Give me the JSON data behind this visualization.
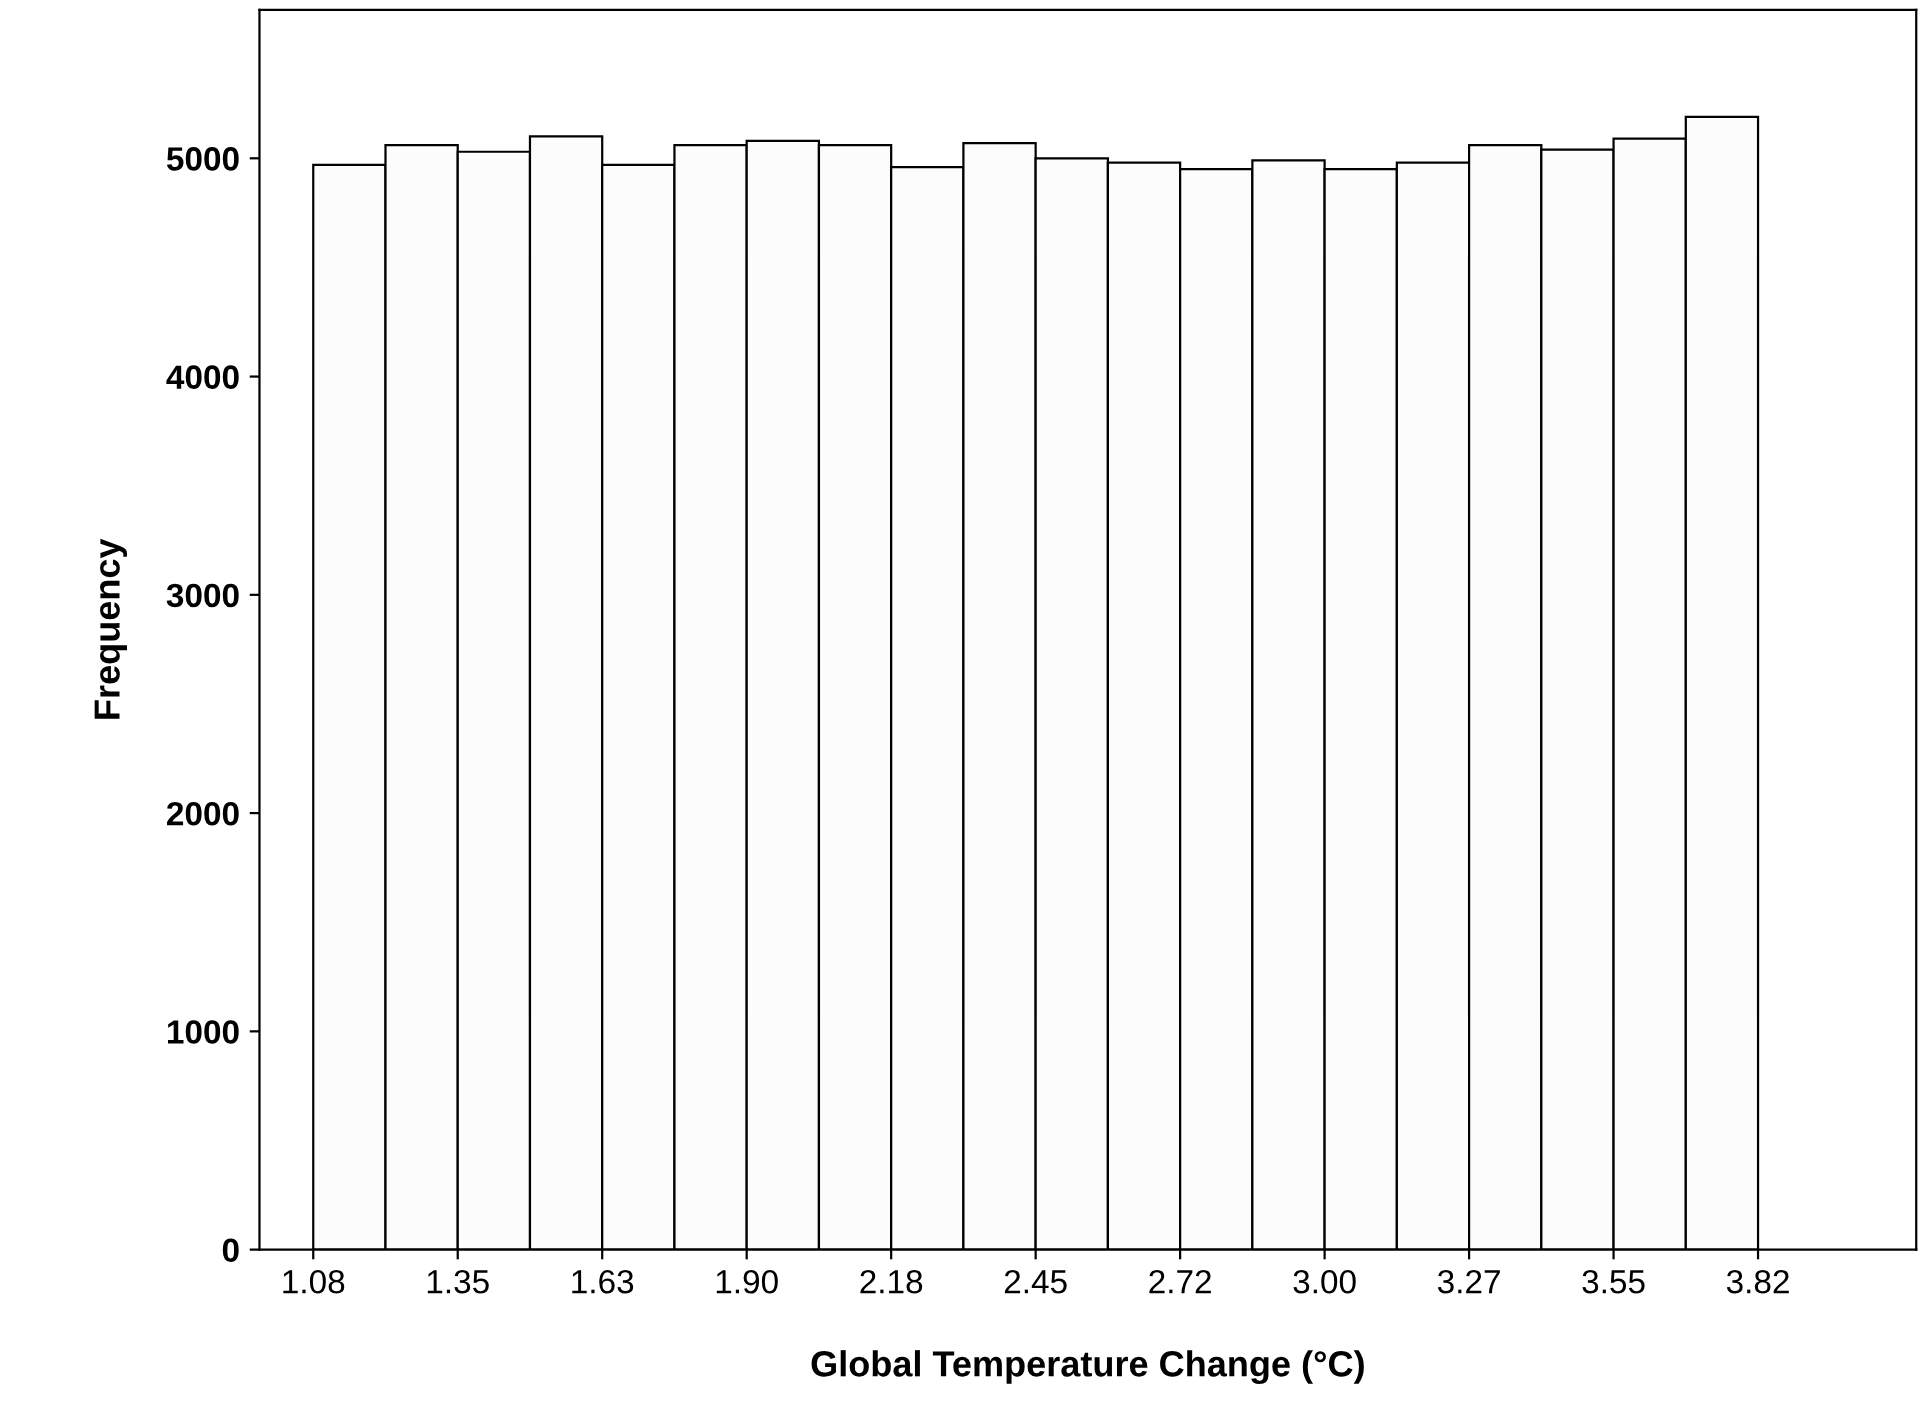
{
  "chart_data": {
    "type": "histogram",
    "xlabel": "Global Temperature Change (°C)",
    "ylabel": "Frequency",
    "bins": [
      1.08,
      1.217,
      1.354,
      1.491,
      1.628,
      1.765,
      1.902,
      2.039,
      2.176,
      2.313,
      2.45,
      2.587,
      2.724,
      2.861,
      2.998,
      3.135,
      3.272,
      3.409,
      3.546,
      3.683,
      3.82
    ],
    "values": [
      4970,
      5060,
      5030,
      5100,
      4970,
      5060,
      5080,
      5060,
      4960,
      5070,
      5000,
      4980,
      4950,
      4990,
      4950,
      4980,
      5060,
      5040,
      5090,
      5190
    ],
    "color": "#fcfcfc",
    "xlim": [
      0.978,
      4.12
    ],
    "ylim": [
      0,
      5680
    ],
    "xticks": [
      1.08,
      {
        "value": 1.354,
        "label": "1.35"
      },
      {
        "value": 1.628,
        "label": "1.63"
      },
      {
        "value": 1.902,
        "label": "1.90"
      },
      {
        "value": 2.176,
        "label": "2.18"
      },
      {
        "value": 2.45,
        "label": "2.45"
      },
      {
        "value": 2.724,
        "label": "2.72"
      },
      {
        "value": 2.998,
        "label": "3.00"
      },
      {
        "value": 3.272,
        "label": "3.27"
      },
      {
        "value": 3.546,
        "label": "3.55"
      },
      {
        "value": 3.82,
        "label": "3.82"
      }
    ],
    "yticks": [
      0,
      1000,
      2000,
      3000,
      4000,
      5000
    ],
    "grid": false,
    "legend": false
  }
}
